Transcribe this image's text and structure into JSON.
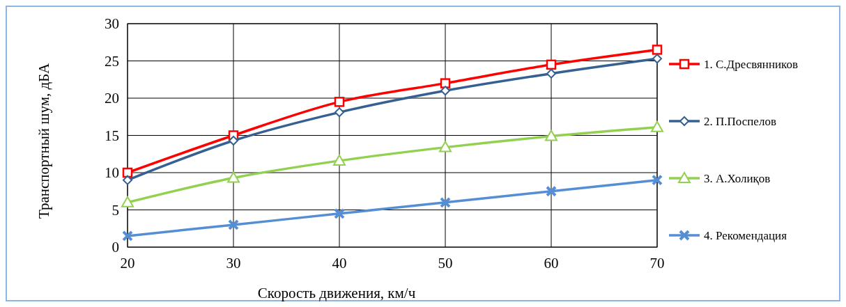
{
  "chart_data": {
    "type": "line",
    "xlabel": "Скорость движения, км/ч",
    "ylabel": "Транспортный шум, дБА",
    "x": [
      20,
      30,
      40,
      50,
      60,
      70
    ],
    "xlim": [
      20,
      70
    ],
    "xticks": [
      20,
      30,
      40,
      50,
      60,
      70
    ],
    "ylim": [
      0,
      30
    ],
    "yticks": [
      0,
      5,
      10,
      15,
      20,
      25,
      30
    ],
    "grid": true,
    "legend": "right",
    "series": [
      {
        "name": "1. С.Дресвянников",
        "color": "#ff0000",
        "marker": "square",
        "values": [
          10,
          15,
          19.5,
          22,
          24.5,
          26.5
        ]
      },
      {
        "name": "2. П.Поспелов",
        "color": "#366092",
        "marker": "diamond",
        "values": [
          9,
          14.3,
          18.1,
          21,
          23.3,
          25.3
        ]
      },
      {
        "name": "3. А.Холиқов",
        "color": "#92d050",
        "marker": "triangle",
        "values": [
          6,
          9.3,
          11.6,
          13.4,
          14.9,
          16.1
        ]
      },
      {
        "name": "4. Рекомендация",
        "color": "#558ed5",
        "marker": "cross",
        "values": [
          1.5,
          3,
          4.5,
          6,
          7.5,
          9
        ]
      }
    ]
  }
}
